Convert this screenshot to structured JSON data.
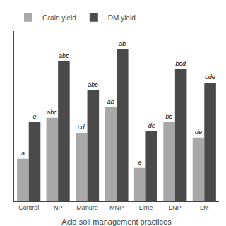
{
  "chart_data": {
    "type": "bar",
    "x_label": "Acid soil management practices",
    "categories": [
      "Control",
      "NP",
      "Manure",
      "MNP",
      "Lime",
      "LNP",
      "LM"
    ],
    "series": [
      {
        "name": "Grain yield",
        "color": "#a8a8a8",
        "values": [
          0.28,
          0.55,
          0.45,
          0.62,
          0.22,
          0.52,
          0.42
        ],
        "value_labels": [
          "a",
          "abc",
          "cd",
          "ab",
          "e",
          "bc",
          "de"
        ]
      },
      {
        "name": "DM yield",
        "color": "#4a4a4a",
        "values": [
          0.52,
          0.92,
          0.73,
          1.0,
          0.46,
          0.87,
          0.78
        ],
        "value_labels": [
          "e",
          "abc",
          "abc",
          "ab",
          "de",
          "bcd",
          "cde"
        ]
      }
    ],
    "ylim": [
      0,
      1.12
    ],
    "grid": false,
    "legend": "upper left",
    "tick_labels": "x"
  }
}
